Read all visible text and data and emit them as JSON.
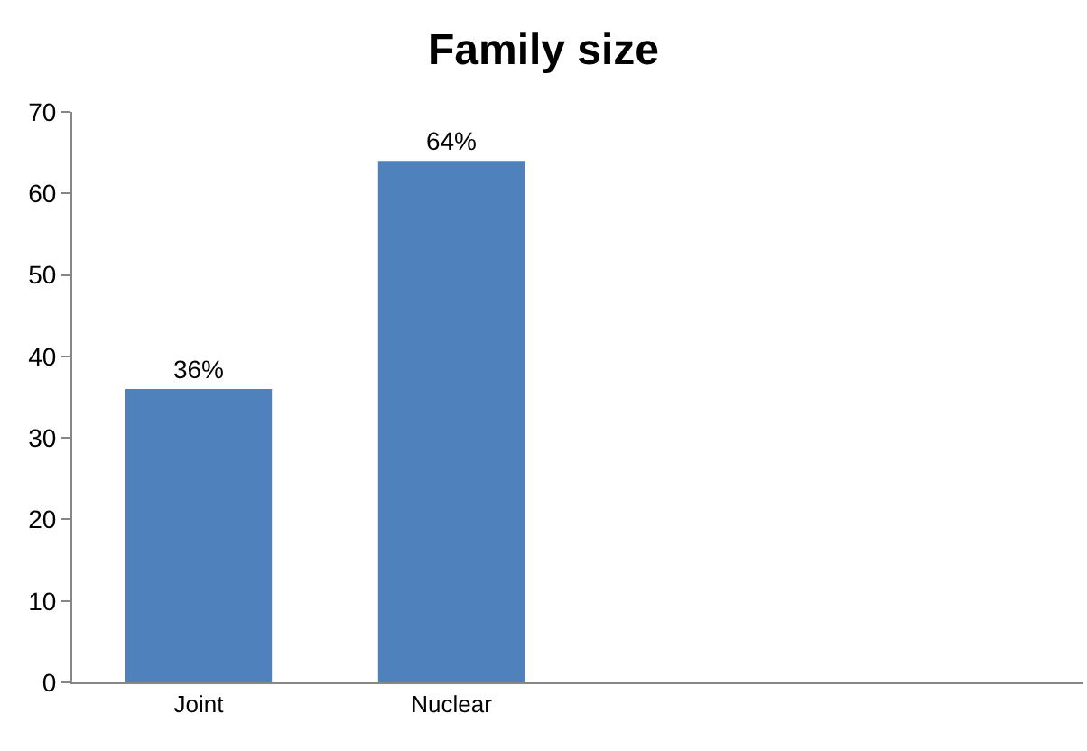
{
  "chart_data": {
    "type": "bar",
    "title": "Family size",
    "categories": [
      "Joint",
      "Nuclear",
      null,
      null
    ],
    "values": [
      36,
      64,
      null,
      null
    ],
    "value_labels": [
      "36%",
      "64%",
      null,
      null
    ],
    "color": "#4f81bd",
    "ylim": [
      0,
      70
    ],
    "yticks": [
      0,
      10,
      20,
      30,
      40,
      50,
      60,
      70
    ]
  }
}
